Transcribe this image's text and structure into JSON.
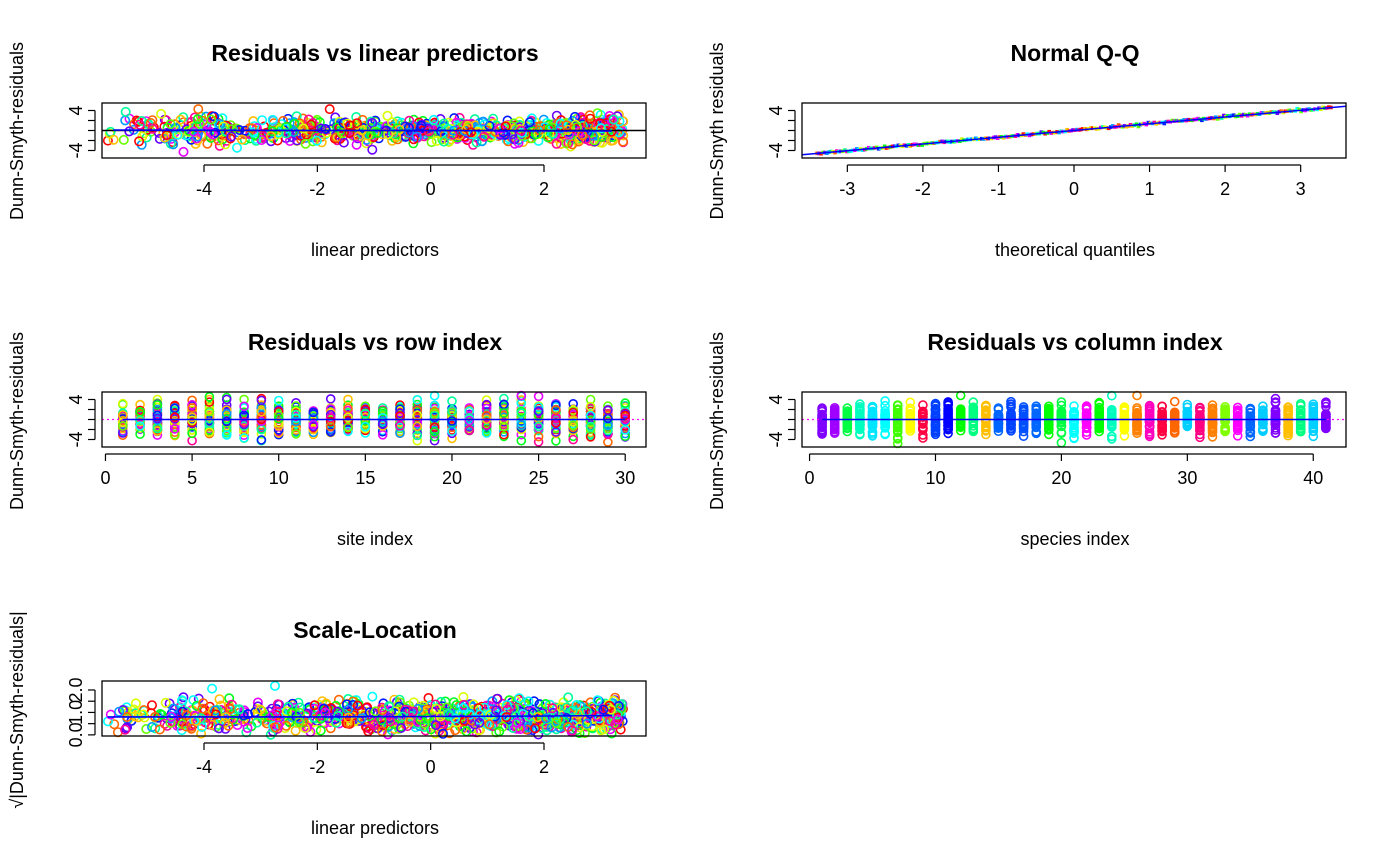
{
  "chart_data": [
    {
      "type": "scatter",
      "title": "Residuals vs linear predictors",
      "xlabel": "linear predictors",
      "ylabel": "Dunn-Smyth-residuals",
      "xlim": [
        -5.8,
        3.8
      ],
      "ylim": [
        -5.5,
        5.5
      ],
      "x_ticks": [
        -4,
        -2,
        0,
        2
      ],
      "y_ticks": [
        -4,
        4
      ],
      "reference_line": {
        "type": "horizontal",
        "y": 0,
        "color": "#000000"
      },
      "smoother": {
        "color": "#0000ff",
        "points": [
          [
            -5.6,
            0.1
          ],
          [
            -2,
            0.0
          ],
          [
            0,
            0.0
          ],
          [
            2,
            -0.1
          ],
          [
            3.2,
            -0.1
          ]
        ]
      },
      "colors": [
        "#ff0000",
        "#ff6600",
        "#ffbf00",
        "#d9ff00",
        "#66ff00",
        "#00ff1a",
        "#00ff99",
        "#00ffff",
        "#0099ff",
        "#0019ff",
        "#6600ff",
        "#e600ff",
        "#ff0099"
      ],
      "summary": {
        "n_points": "≈1230 (30 sites × 41 species)",
        "x_range": [
          -5.7,
          3.4
        ],
        "y_range": [
          -5.0,
          5.2
        ],
        "note": "dense band of open circles centred on 0, narrowing toward large linear predictors"
      }
    },
    {
      "type": "scatter",
      "title": "Normal Q-Q",
      "xlabel": "theoretical quantiles",
      "ylabel": "Dunn-Smyth residuals",
      "xlim": [
        -3.6,
        3.6
      ],
      "ylim": [
        -5.5,
        5.5
      ],
      "x_ticks": [
        -3,
        -2,
        -1,
        0,
        1,
        2,
        3
      ],
      "y_ticks": [
        -4,
        4
      ],
      "reference_line": {
        "type": "abline",
        "intercept": 0,
        "slope": 1.35,
        "color": "#0000ff"
      },
      "summary": {
        "note": "points lie along the reference line from about (-3.4, -4.9) to (3.4, 5.0)"
      }
    },
    {
      "type": "scatter",
      "title": "Residuals vs row index",
      "xlabel": "site index",
      "ylabel": "Dunn-Smyth-residuals",
      "xlim": [
        -0.2,
        31.2
      ],
      "ylim": [
        -5.5,
        5.5
      ],
      "x_ticks": [
        0,
        5,
        10,
        15,
        20,
        25,
        30
      ],
      "y_ticks": [
        -4,
        4
      ],
      "x_values": [
        1,
        30
      ],
      "reference_line": {
        "type": "horizontal",
        "y": 0,
        "color": "#ff00ff",
        "style": "dotted"
      },
      "smoother": {
        "color": "#0000ff",
        "y": 0
      },
      "summary": {
        "note": "vertical strips of 41 residuals at each site 1–30, mostly within [-4, 4]"
      }
    },
    {
      "type": "scatter",
      "title": "Residuals vs column index",
      "xlabel": "species index",
      "ylabel": "Dunn-Smyth-residuals",
      "xlim": [
        -0.6,
        42.6
      ],
      "ylim": [
        -5.5,
        5.5
      ],
      "x_ticks": [
        0,
        10,
        20,
        30,
        40
      ],
      "y_ticks": [
        -4,
        4
      ],
      "x_values": [
        1,
        41
      ],
      "reference_line": {
        "type": "horizontal",
        "y": 0,
        "color": "#ff00ff",
        "style": "dotted"
      },
      "smoother": {
        "color": "#0000ff",
        "y": 0
      },
      "summary": {
        "note": "vertical strips of 30 residuals for each species 1–41, coloured by species"
      }
    },
    {
      "type": "scatter",
      "title": "Scale-Location",
      "xlabel": "linear predictors",
      "ylabel": "√|Dunn-Smyth-residuals|",
      "xlim": [
        -5.8,
        3.8
      ],
      "ylim": [
        -0.05,
        2.4
      ],
      "x_ticks": [
        -4,
        -2,
        0,
        2
      ],
      "y_ticks": [
        0.0,
        1.0,
        2.0
      ],
      "y_tick_labels": [
        "0.0",
        "1.0",
        "2.0"
      ],
      "smoother": {
        "color": "#0000ff",
        "points": [
          [
            -5.7,
            0.8
          ],
          [
            -2,
            0.8
          ],
          [
            0,
            0.82
          ],
          [
            2,
            0.84
          ],
          [
            3.2,
            0.86
          ]
        ]
      },
      "summary": {
        "note": "values between 0 and about 2.3; fairly flat smoother near 0.8"
      }
    }
  ]
}
